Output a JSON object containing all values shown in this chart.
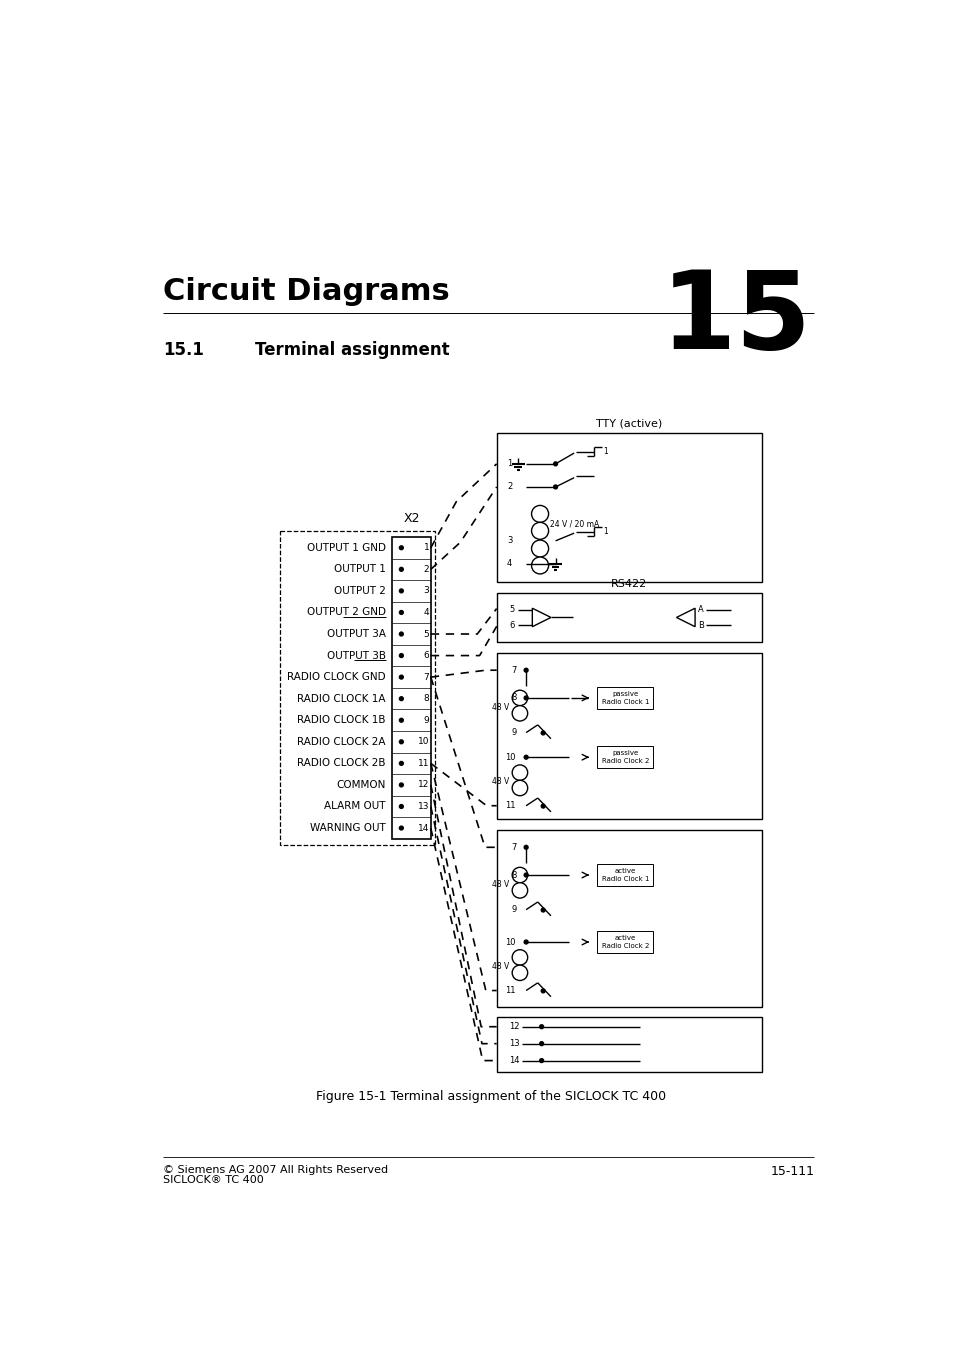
{
  "title": "Circuit Diagrams",
  "chapter_num": "15",
  "section": "15.1",
  "section_title": "Terminal assignment",
  "figure_caption": "Figure 15-1 Terminal assignment of the SICLOCK TC 400",
  "footer_left_1": "© Siemens AG 2007 All Rights Reserved",
  "footer_left_2": "SICLOCK® TC 400",
  "footer_right": "15-111",
  "terminal_label": "X2",
  "terminals": [
    "OUTPUT 1 GND",
    "OUTPUT 1",
    "OUTPUT 2",
    "OUTPUT 2 GND",
    "OUTPUT 3A",
    "OUTPUT 3B",
    "RADIO CLOCK GND",
    "RADIO CLOCK 1A",
    "RADIO CLOCK 1B",
    "RADIO CLOCK 2A",
    "RADIO CLOCK 2B",
    "COMMON",
    "ALARM OUT",
    "WARNING OUT"
  ],
  "underlined_names": [
    "OUTPUT 2 GND",
    "OUTPUT 3B"
  ],
  "bg_color": "#ffffff",
  "text_color": "#000000"
}
